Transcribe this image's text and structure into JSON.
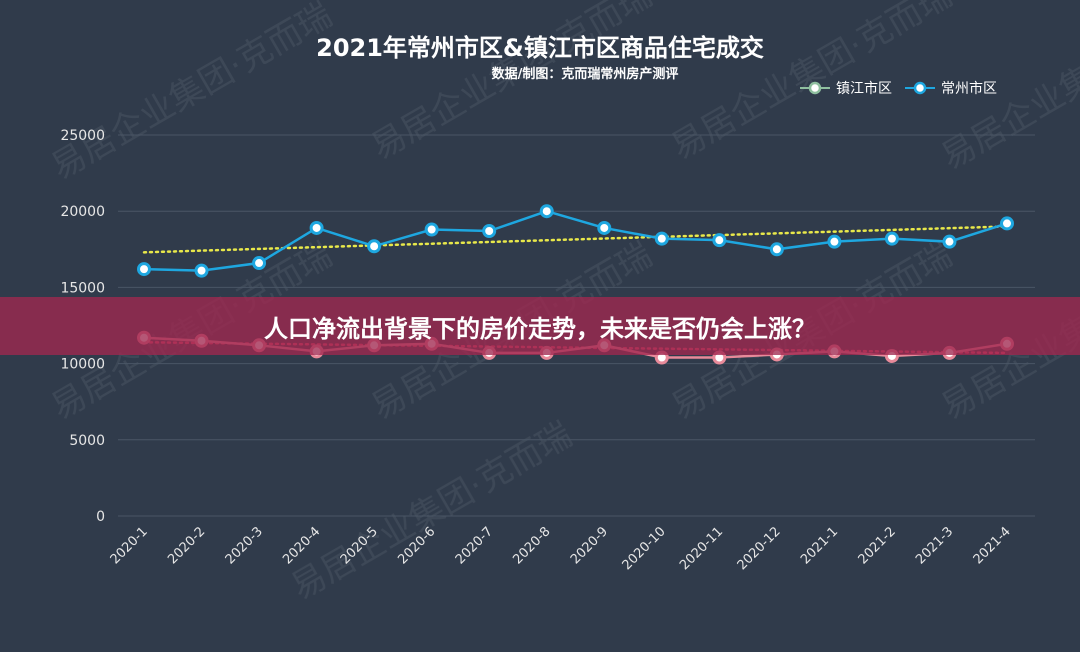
{
  "chart_data": {
    "type": "line",
    "title": "2021年常州市区&镇江市区商品住宅成交",
    "subtitle": "数据/制图：克而瑞常州房产测评",
    "categories": [
      "2020-1",
      "2020-2",
      "2020-3",
      "2020-4",
      "2020-5",
      "2020-6",
      "2020-7",
      "2020-8",
      "2020-9",
      "2020-10",
      "2020-11",
      "2020-12",
      "2021-1",
      "2021-2",
      "2021-3",
      "2021-4"
    ],
    "series": [
      {
        "name": "镇江市区",
        "values": [
          11700,
          11500,
          11200,
          10800,
          11200,
          11300,
          10700,
          10700,
          11200,
          10400,
          10400,
          10600,
          10800,
          10500,
          10700,
          11300
        ]
      },
      {
        "name": "常州市区",
        "values": [
          16200,
          16100,
          16600,
          18900,
          17700,
          18800,
          18700,
          20000,
          18900,
          18200,
          18100,
          17500,
          18000,
          18200,
          18000,
          19200
        ]
      }
    ],
    "trendlines": [
      {
        "series": "镇江市区",
        "start": 11400,
        "end": 10700
      },
      {
        "series": "常州市区",
        "start": 17300,
        "end": 19000
      }
    ],
    "yticks": [
      0,
      5000,
      10000,
      15000,
      20000,
      25000
    ],
    "ylim": [
      0,
      25000
    ],
    "legend_position": "top-right",
    "grid": true,
    "colors": {
      "镇江市区": "#e88a9a",
      "常州市区": "#1ea7e0",
      "trend_changzhou": "#e8e84a",
      "trend_zhenjiang": "#e05070",
      "grid": "#4a5666",
      "text": "#e6e6e6"
    }
  },
  "overlay": {
    "banner_text": "人口净流出背景下的房价走势，未来是否仍会上涨？"
  },
  "watermark": {
    "text": "易居企业集团·克而瑞"
  }
}
